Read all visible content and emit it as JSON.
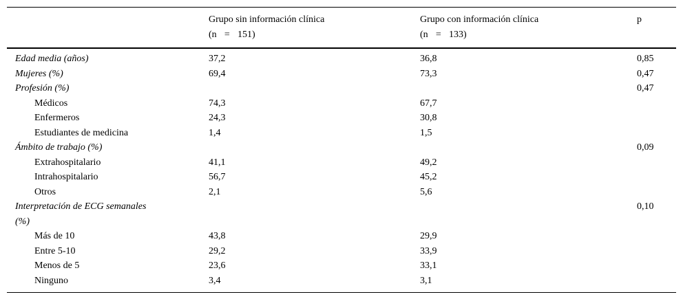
{
  "table": {
    "columns": [
      {
        "title": "",
        "n": ""
      },
      {
        "title": "Grupo sin información clínica",
        "n": "(n = 151)"
      },
      {
        "title": "Grupo con información clínica",
        "n": "(n = 133)"
      },
      {
        "title": "p"
      }
    ],
    "rows": [
      {
        "label": "Edad media (años)",
        "style": "category",
        "group1": "37,2",
        "group2": "36,8",
        "p": "0,85"
      },
      {
        "label": "Mujeres (%)",
        "style": "category",
        "group1": "69,4",
        "group2": "73,3",
        "p": "0,47"
      },
      {
        "label": "Profesión (%)",
        "style": "category",
        "group1": "",
        "group2": "",
        "p": "0,47"
      },
      {
        "label": "Médicos",
        "style": "sub",
        "group1": "74,3",
        "group2": "67,7",
        "p": ""
      },
      {
        "label": "Enfermeros",
        "style": "sub",
        "group1": "24,3",
        "group2": "30,8",
        "p": ""
      },
      {
        "label": "Estudiantes de medicina",
        "style": "sub",
        "group1": "1,4",
        "group2": "1,5",
        "p": ""
      },
      {
        "label": "Ámbito de trabajo (%)",
        "style": "category",
        "group1": "",
        "group2": "",
        "p": "0,09"
      },
      {
        "label": "Extrahospitalario",
        "style": "sub",
        "group1": "41,1",
        "group2": "49,2",
        "p": ""
      },
      {
        "label": "Intrahospitalario",
        "style": "sub",
        "group1": "56,7",
        "group2": "45,2",
        "p": ""
      },
      {
        "label": "Otros",
        "style": "sub",
        "group1": "2,1",
        "group2": "5,6",
        "p": ""
      },
      {
        "label": "Interpretación de ECG semanales\n(%)",
        "style": "category",
        "group1": "",
        "group2": "",
        "p": "0,10"
      },
      {
        "label": "Más de 10",
        "style": "sub",
        "group1": "43,8",
        "group2": "29,9",
        "p": ""
      },
      {
        "label": "Entre 5-10",
        "style": "sub",
        "group1": "29,2",
        "group2": "33,9",
        "p": ""
      },
      {
        "label": "Menos de 5",
        "style": "sub",
        "group1": "23,6",
        "group2": "33,1",
        "p": ""
      },
      {
        "label": "Ninguno",
        "style": "sub",
        "group1": "3,4",
        "group2": "3,1",
        "p": ""
      }
    ]
  }
}
